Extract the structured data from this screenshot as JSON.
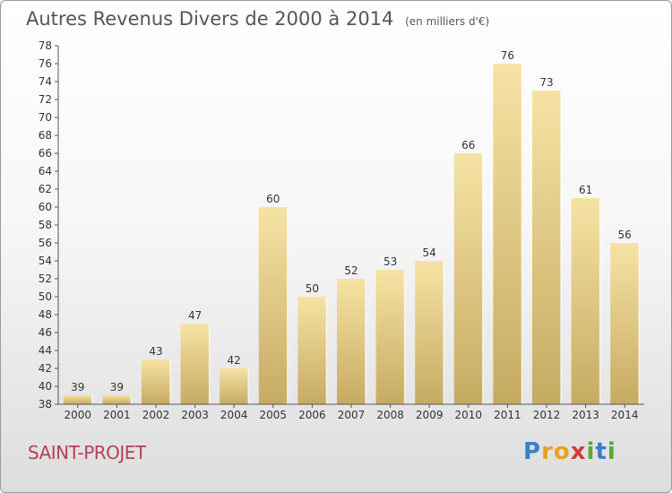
{
  "title": "Autres Revenus Divers de 2000 à 2014",
  "title_unit": "(en milliers d'€)",
  "commune": "SAINT-PROJET",
  "brand": {
    "letters": [
      "P",
      "r",
      "o",
      "x",
      "i",
      "t",
      "i"
    ],
    "colors": [
      "#3b7fc4",
      "#e8a020",
      "#e8a020",
      "#d93a3a",
      "#5aa832",
      "#3b7fc4",
      "#5aa832"
    ]
  },
  "chart_data": {
    "type": "bar",
    "title": "Autres Revenus Divers de 2000 à 2014",
    "categories": [
      "2000",
      "2001",
      "2002",
      "2003",
      "2004",
      "2005",
      "2006",
      "2007",
      "2008",
      "2009",
      "2010",
      "2011",
      "2012",
      "2013",
      "2014"
    ],
    "values": [
      39,
      39,
      43,
      47,
      42,
      60,
      50,
      52,
      53,
      54,
      66,
      76,
      73,
      61,
      56
    ],
    "ylim": [
      38,
      78
    ],
    "yticks": [
      38,
      40,
      42,
      44,
      46,
      48,
      50,
      52,
      54,
      56,
      58,
      60,
      62,
      64,
      66,
      68,
      70,
      72,
      74,
      76,
      78
    ],
    "grid": false,
    "legend": "none",
    "bar_color_light": "#f6e3a4",
    "bar_color_dark": "#c6aa62"
  }
}
